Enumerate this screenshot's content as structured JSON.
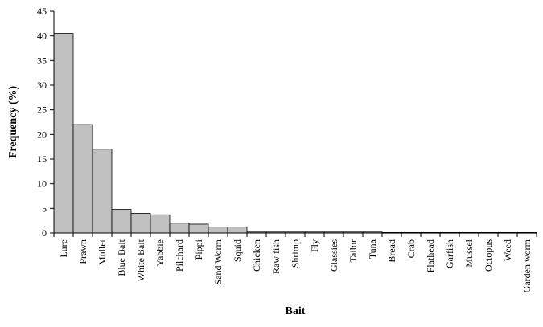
{
  "chart_data": {
    "type": "bar",
    "categories": [
      "Lure",
      "Prawn",
      "Mullet",
      "Blue Bait",
      "White Bait",
      "Yabbie",
      "Pilchard",
      "Pippi",
      "Sand Worm",
      "Squid",
      "Chicken",
      "Raw fish",
      "Shrimp",
      "Fly",
      "Glassies",
      "Tailor",
      "Tuna",
      "Bread",
      "Crab",
      "Flathead",
      "Garfish",
      "Mussel",
      "Octopus",
      "Weed",
      "Garden worm"
    ],
    "values": [
      40.5,
      22.0,
      17.0,
      4.8,
      4.0,
      3.7,
      2.0,
      1.8,
      1.2,
      1.2,
      0.2,
      0.2,
      0.2,
      0.2,
      0.2,
      0.2,
      0.2,
      0.1,
      0.1,
      0.1,
      0.1,
      0.1,
      0.1,
      0.1,
      0.1
    ],
    "xlabel": "Bait",
    "ylabel": "Frequency (%)",
    "ylim": [
      0,
      45
    ],
    "yticks": [
      "0",
      "5",
      "10",
      "15",
      "20",
      "25",
      "30",
      "35",
      "40",
      "45"
    ],
    "grid": false,
    "bar_color": "#c0c0c0",
    "bar_edge_color": "#000000"
  }
}
